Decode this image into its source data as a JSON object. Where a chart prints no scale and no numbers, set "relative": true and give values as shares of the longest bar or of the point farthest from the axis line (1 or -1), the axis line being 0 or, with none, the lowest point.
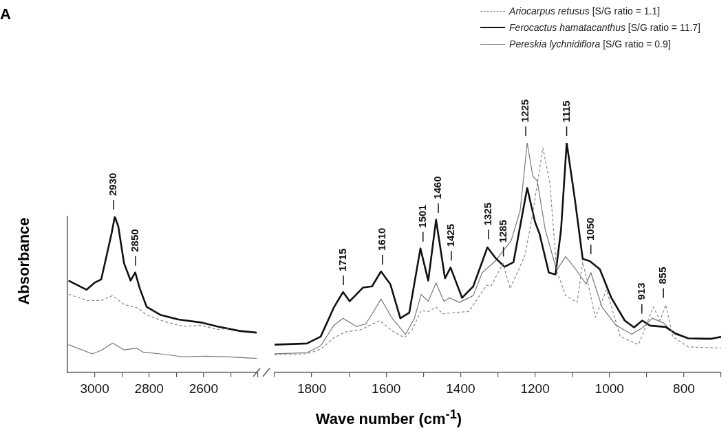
{
  "chart_data": [
    {
      "type": "line",
      "relative": true,
      "ylabel": "Absorbance",
      "xlim": [
        3100,
        2400
      ],
      "xticks": [
        3000,
        {
          "value": 2900,
          "label": null
        },
        2800,
        {
          "value": 2700,
          "label": null
        },
        2600,
        {
          "value": 2500,
          "label": null
        },
        {
          "value": 2400,
          "label": null
        }
      ],
      "tick_labels": "x",
      "grid": false,
      "legend": false,
      "marker": "none",
      "annotations": [
        "A",
        {
          "text": "2930",
          "x": 2930,
          "y": 1.0
        },
        {
          "text": "2850",
          "x": 2850,
          "y": 0.64
        }
      ],
      "series": [
        {
          "color": "#888888",
          "line_style": "dashed",
          "x": [
            3096,
            3026,
            2976,
            2934,
            2892,
            2842,
            2809,
            2742,
            2676,
            2609,
            2551,
            2509
          ],
          "values": [
            0.501,
            0.461,
            0.461,
            0.493,
            0.435,
            0.413,
            0.369,
            0.325,
            0.295,
            0.302,
            0.276,
            0.28
          ]
        },
        {
          "color": "#111111",
          "line_style": "solid",
          "x": [
            3096,
            3030,
            3001,
            2976,
            2955,
            2938,
            2926,
            2913,
            2892,
            2868,
            2851,
            2834,
            2809,
            2759,
            2692,
            2609,
            2551,
            2468,
            2405
          ],
          "values": [
            0.589,
            0.53,
            0.574,
            0.596,
            0.758,
            0.89,
            1.0,
            0.934,
            0.699,
            0.589,
            0.64,
            0.537,
            0.42,
            0.369,
            0.339,
            0.32,
            0.295,
            0.266,
            0.255
          ]
        },
        {
          "color": "#777777",
          "line_style": "solid",
          "x": [
            3096,
            3009,
            2976,
            2934,
            2892,
            2846,
            2821,
            2759,
            2676,
            2592,
            2509,
            2405
          ],
          "values": [
            0.178,
            0.119,
            0.141,
            0.188,
            0.144,
            0.156,
            0.129,
            0.119,
            0.1,
            0.104,
            0.1,
            0.09
          ]
        }
      ]
    },
    {
      "type": "line",
      "relative": true,
      "xlabel": "Wave number (cm$^{-1}$)",
      "xlim": [
        1900,
        700
      ],
      "xticks": [
        {
          "value": 1900,
          "label": null
        },
        1800,
        {
          "value": 1700,
          "label": null
        },
        1600,
        {
          "value": 1500,
          "label": null
        },
        1400,
        {
          "value": 1300,
          "label": null
        },
        1200,
        {
          "value": 1100,
          "label": null
        },
        1000,
        {
          "value": 900,
          "label": null
        },
        800,
        {
          "value": 700,
          "label": null
        }
      ],
      "tick_labels": "x",
      "grid": false,
      "legend": "top right",
      "marker": "none",
      "annotations": [
        {
          "text": "1715",
          "x": 1715,
          "y": 0.35
        },
        {
          "text": "1610",
          "x": 1610,
          "y": 0.44
        },
        {
          "text": "1501",
          "x": 1501,
          "y": 0.54
        },
        {
          "text": "1460",
          "x": 1460,
          "y": 0.665
        },
        {
          "text": "1425",
          "x": 1425,
          "y": 0.457
        },
        {
          "text": "1325",
          "x": 1325,
          "y": 0.55
        },
        {
          "text": "1285",
          "x": 1285,
          "y": 0.475
        },
        {
          "text": "1225",
          "x": 1225,
          "y": 1.0
        },
        {
          "text": "1115",
          "x": 1115,
          "y": 1.0
        },
        {
          "text": "1050",
          "x": 1050,
          "y": 0.485
        },
        {
          "text": "913",
          "x": 913,
          "y": 0.226
        },
        {
          "text": "855",
          "x": 855,
          "y": 0.295
        }
      ],
      "series": [
        {
          "name": "Ariocarpus retusus [S/G ratio = 1.1]",
          "color": "#888888",
          "line_style": "dashed",
          "x": [
            1900,
            1813,
            1776,
            1740,
            1710,
            1668,
            1617,
            1584,
            1551,
            1530,
            1506,
            1487,
            1466,
            1448,
            1427,
            1378,
            1330,
            1319,
            1286,
            1267,
            1227,
            1206,
            1179,
            1160,
            1142,
            1118,
            1087,
            1072,
            1056,
            1038,
            1008,
            971,
            922,
            882,
            864,
            849,
            830,
            788,
            700
          ],
          "values": [
            0.076,
            0.081,
            0.101,
            0.151,
            0.176,
            0.186,
            0.226,
            0.181,
            0.151,
            0.186,
            0.27,
            0.265,
            0.285,
            0.255,
            0.26,
            0.265,
            0.38,
            0.375,
            0.475,
            0.365,
            0.51,
            0.695,
            0.979,
            0.824,
            0.445,
            0.335,
            0.305,
            0.48,
            0.375,
            0.24,
            0.36,
            0.156,
            0.121,
            0.285,
            0.226,
            0.295,
            0.156,
            0.111,
            0.106
          ]
        },
        {
          "name": "Ferocactus hamatacanthus [S/G ratio = 11.7]",
          "color": "#111111",
          "line_style": "solid",
          "x": [
            1900,
            1813,
            1776,
            1740,
            1716,
            1698,
            1662,
            1638,
            1614,
            1589,
            1562,
            1538,
            1508,
            1487,
            1466,
            1442,
            1427,
            1396,
            1366,
            1328,
            1307,
            1282,
            1258,
            1221,
            1200,
            1188,
            1163,
            1145,
            1130,
            1115,
            1093,
            1072,
            1053,
            1026,
            995,
            959,
            934,
            912,
            891,
            849,
            824,
            788,
            727,
            700
          ],
          "values": [
            0.121,
            0.126,
            0.156,
            0.285,
            0.35,
            0.31,
            0.37,
            0.375,
            0.44,
            0.385,
            0.236,
            0.26,
            0.54,
            0.4,
            0.665,
            0.41,
            0.457,
            0.325,
            0.375,
            0.545,
            0.5,
            0.46,
            0.48,
            0.804,
            0.655,
            0.605,
            0.435,
            0.427,
            0.625,
            1.0,
            0.755,
            0.495,
            0.485,
            0.45,
            0.325,
            0.226,
            0.196,
            0.226,
            0.204,
            0.198,
            0.171,
            0.148,
            0.146,
            0.156
          ]
        },
        {
          "name": "Pereskia lychnidiflora [S/G ratio = 0.9]",
          "color": "#777777",
          "line_style": "solid",
          "x": [
            1900,
            1813,
            1776,
            1740,
            1716,
            1680,
            1655,
            1634,
            1614,
            1584,
            1548,
            1524,
            1506,
            1487,
            1466,
            1445,
            1430,
            1403,
            1366,
            1342,
            1307,
            1264,
            1240,
            1221,
            1206,
            1194,
            1173,
            1142,
            1118,
            1093,
            1063,
            1050,
            1020,
            983,
            940,
            910,
            885,
            855,
            824,
            788,
            700
          ],
          "values": [
            0.081,
            0.086,
            0.116,
            0.206,
            0.236,
            0.2,
            0.211,
            0.265,
            0.32,
            0.236,
            0.166,
            0.236,
            0.34,
            0.31,
            0.39,
            0.31,
            0.325,
            0.305,
            0.335,
            0.435,
            0.485,
            0.575,
            0.705,
            1.0,
            0.854,
            0.834,
            0.625,
            0.445,
            0.505,
            0.455,
            0.385,
            0.435,
            0.285,
            0.206,
            0.166,
            0.196,
            0.236,
            0.216,
            0.166,
            0.148,
            0.151
          ]
        }
      ]
    }
  ]
}
